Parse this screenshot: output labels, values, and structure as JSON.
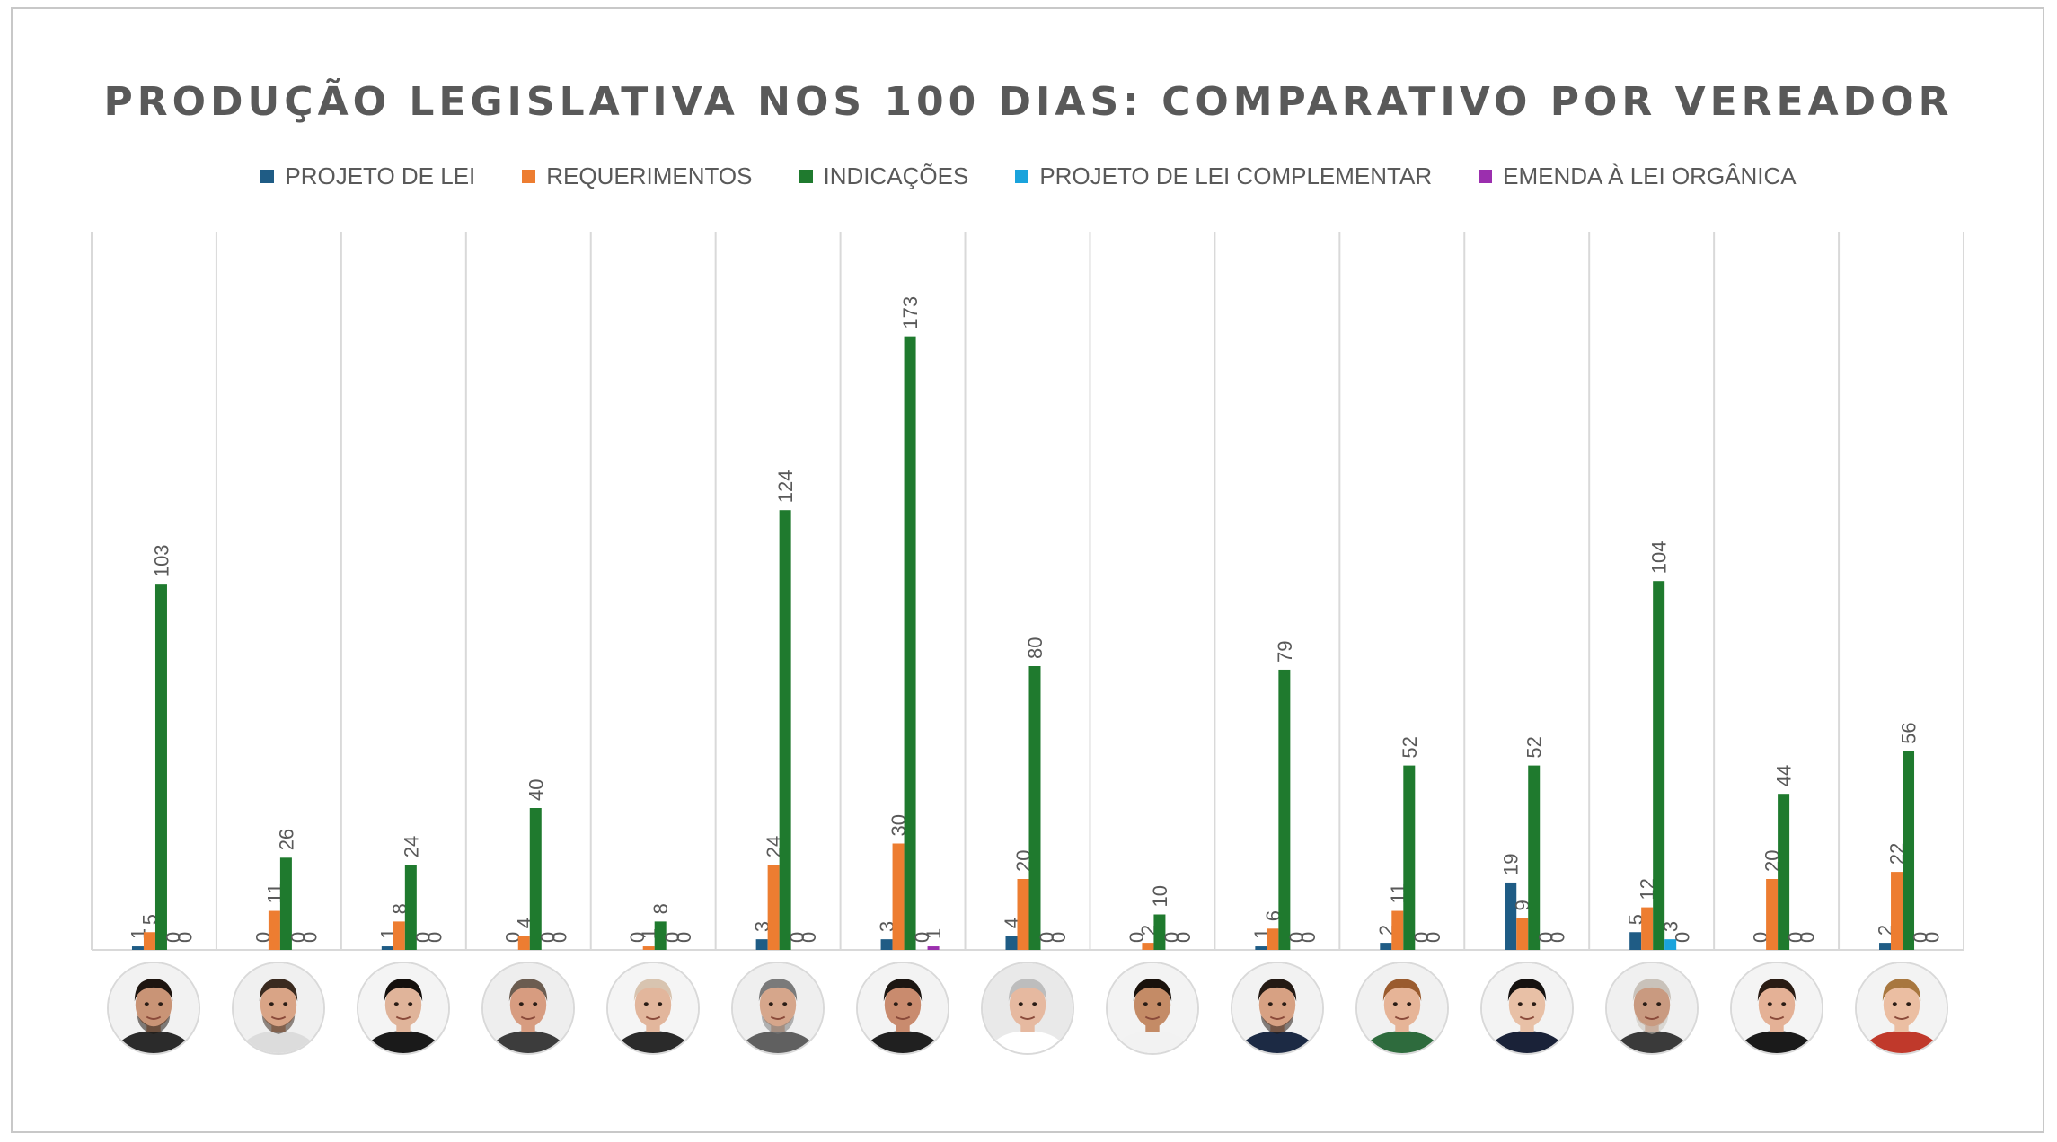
{
  "chart_data": {
    "type": "bar",
    "title": "PRODUÇÃO LEGISLATIVA NOS 100 DIAS: COMPARATIVO POR VEREADOR",
    "xlabel": "",
    "ylabel": "",
    "ylim": [
      0,
      200
    ],
    "grid": "vertical separators between categories",
    "legend_position": "top",
    "data_labels": "rotated, above bars",
    "categories_note": "each category shown only as a councillor portrait",
    "category_count": 15,
    "series": [
      {
        "name": "PROJETO DE LEI",
        "color": "#1f5c85",
        "values": [
          1,
          0,
          1,
          0,
          0,
          3,
          3,
          4,
          0,
          1,
          2,
          19,
          5,
          0,
          2
        ]
      },
      {
        "name": "REQUERIMENTOS",
        "color": "#ed7d31",
        "values": [
          5,
          11,
          8,
          4,
          1,
          24,
          30,
          20,
          2,
          6,
          11,
          9,
          12,
          20,
          22
        ]
      },
      {
        "name": "INDICAÇÕES",
        "color": "#1f7a2e",
        "values": [
          103,
          26,
          24,
          40,
          8,
          124,
          173,
          80,
          10,
          79,
          52,
          52,
          104,
          44,
          56
        ]
      },
      {
        "name": "PROJETO DE LEI COMPLEMENTAR",
        "color": "#1aa3dc",
        "values": [
          0,
          0,
          0,
          0,
          0,
          0,
          0,
          0,
          0,
          0,
          0,
          0,
          3,
          0,
          0
        ]
      },
      {
        "name": "EMENDA À LEI ORGÂNICA",
        "color": "#9b2fae",
        "values": [
          0,
          0,
          0,
          0,
          0,
          0,
          1,
          0,
          0,
          0,
          0,
          0,
          0,
          0,
          0
        ]
      }
    ]
  },
  "portraits": [
    {
      "icon": "councillor-portrait-icon",
      "skin": "#c99476",
      "hair": "#1e1510",
      "shirt": "#2b2b2b",
      "bg": "#f2f2f2",
      "beard": true
    },
    {
      "icon": "councillor-portrait-icon",
      "skin": "#d9a486",
      "hair": "#3a2a1f",
      "shirt": "#dcdcdc",
      "bg": "#f0f0f0",
      "beard": true
    },
    {
      "icon": "councillor-portrait-icon",
      "skin": "#e0b49a",
      "hair": "#15100d",
      "shirt": "#1a1a1a",
      "bg": "#f4f4f4",
      "beard": false
    },
    {
      "icon": "councillor-portrait-icon",
      "skin": "#d79c80",
      "hair": "#6b5c50",
      "shirt": "#3c3c3c",
      "bg": "#eeeeee",
      "beard": false
    },
    {
      "icon": "councillor-portrait-icon",
      "skin": "#e2b69c",
      "hair": "#d8c4b0",
      "shirt": "#2a2a2a",
      "bg": "#f5f5f5",
      "beard": false
    },
    {
      "icon": "councillor-portrait-icon",
      "skin": "#d6a68b",
      "hair": "#7a7a7a",
      "shirt": "#606060",
      "bg": "#efefef",
      "beard": true
    },
    {
      "icon": "councillor-portrait-icon",
      "skin": "#c98b6e",
      "hair": "#1c1612",
      "shirt": "#202020",
      "bg": "#f3f3f3",
      "beard": false
    },
    {
      "icon": "councillor-portrait-icon",
      "skin": "#e6b9a0",
      "hair": "#bdbdbd",
      "shirt": "#ffffff",
      "bg": "#e9e9e9",
      "beard": false
    },
    {
      "icon": "councillor-portrait-icon",
      "skin": "#c48b66",
      "hair": "#1a120c",
      "shirt": "#f2f2f2",
      "bg": "#f3f3f3",
      "beard": false
    },
    {
      "icon": "councillor-portrait-icon",
      "skin": "#d7a183",
      "hair": "#241a14",
      "shirt": "#1c2a44",
      "bg": "#f2f2f2",
      "beard": true
    },
    {
      "icon": "councillor-portrait-icon",
      "skin": "#e6b497",
      "hair": "#9a5b2e",
      "shirt": "#2e6b3d",
      "bg": "#f1f1f1",
      "beard": false
    },
    {
      "icon": "councillor-portrait-icon",
      "skin": "#e8c0a6",
      "hair": "#161210",
      "shirt": "#1a2238",
      "bg": "#f3f3f3",
      "beard": false
    },
    {
      "icon": "councillor-portrait-icon",
      "skin": "#c99a80",
      "hair": "#c9c2ba",
      "shirt": "#3a3a3a",
      "bg": "#f0f0f0",
      "beard": true
    },
    {
      "icon": "councillor-portrait-icon",
      "skin": "#e4b196",
      "hair": "#2a1c14",
      "shirt": "#1a1a1a",
      "bg": "#f4f4f4",
      "beard": false
    },
    {
      "icon": "councillor-portrait-icon",
      "skin": "#ebbea2",
      "hair": "#a8773f",
      "shirt": "#c0392b",
      "bg": "#f3f3f3",
      "beard": false
    }
  ]
}
